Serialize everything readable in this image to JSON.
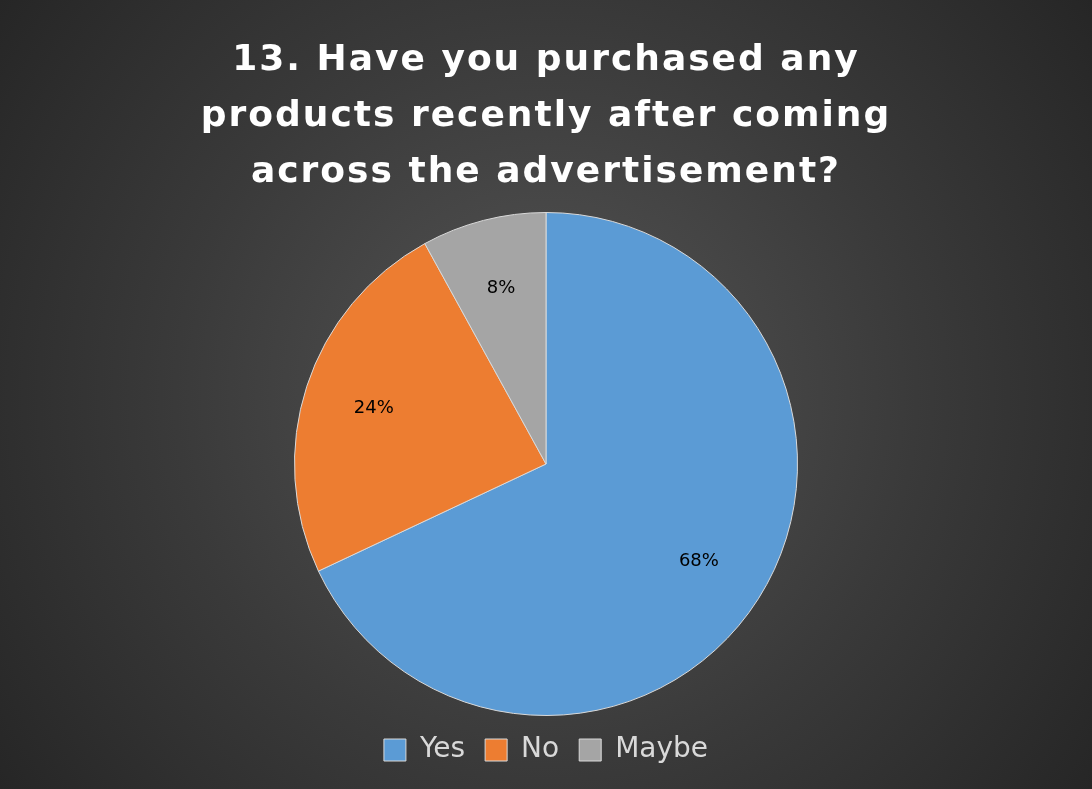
{
  "chart_data": {
    "type": "pie",
    "title": "13. Have you purchased any products recently after coming across the advertisement?",
    "categories": [
      "Yes",
      "No",
      "Maybe"
    ],
    "values": [
      68,
      24,
      8
    ],
    "value_labels": [
      "68%",
      "24%",
      "8%"
    ],
    "colors": [
      "#5b9bd5",
      "#ed7d31",
      "#a5a5a5"
    ],
    "legend": "bottom"
  }
}
